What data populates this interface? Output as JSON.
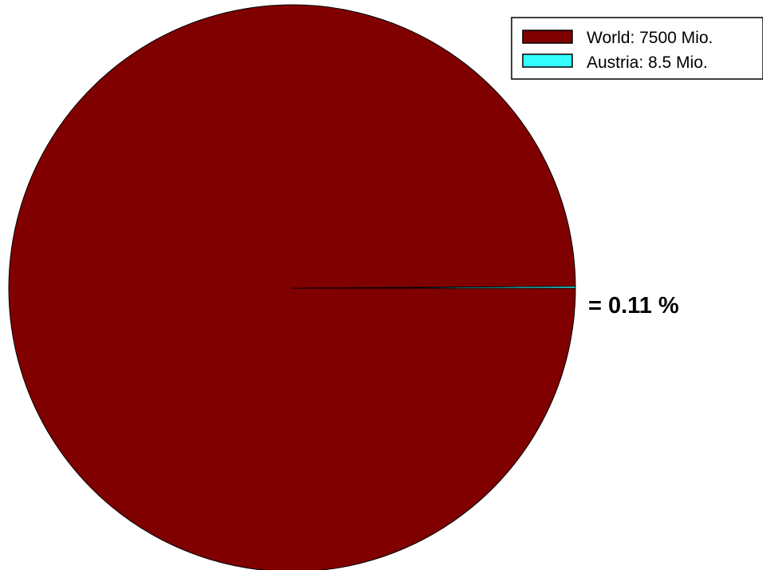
{
  "chart_data": {
    "type": "pie",
    "slices": [
      {
        "label": "World: 7500 Mio.",
        "value": 7500,
        "color": "#800000"
      },
      {
        "label": "Austria: 8.5 Mio.",
        "value": 8.5,
        "color": "#33FFFF"
      }
    ],
    "annotation": "= 0.11 %",
    "legend_position": "top-right"
  }
}
